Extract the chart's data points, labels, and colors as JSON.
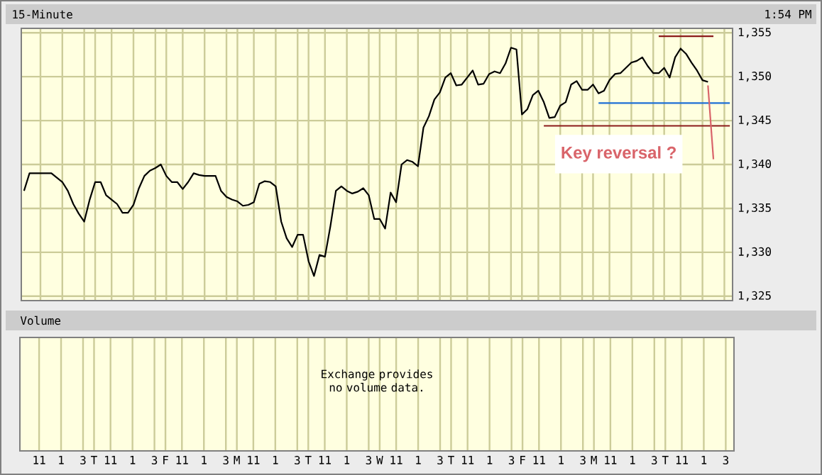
{
  "chart_data": [
    {
      "type": "line",
      "title": "15-Minute",
      "subtitle": "1:54 PM",
      "series": [
        {
          "color": "#000000",
          "values": [
            1337,
            1339,
            1339,
            1339,
            1339,
            1339,
            1338.5,
            1338,
            1337,
            1335.5,
            1334.4,
            1333.5,
            1336,
            1338,
            1338,
            1336.5,
            1336,
            1335.5,
            1334.5,
            1334.5,
            1335.4,
            1337.3,
            1338.7,
            1339.3,
            1339.6,
            1340,
            1338.7,
            1338,
            1338,
            1337.2,
            1338,
            1339,
            1338.8,
            1338.7,
            1338.7,
            1338.7,
            1337,
            1336.3,
            1336,
            1335.8,
            1335.3,
            1335.4,
            1335.7,
            1337.8,
            1338.1,
            1338,
            1337.5,
            1333.5,
            1331.6,
            1330.6,
            1332,
            1332,
            1329,
            1327.3,
            1329.7,
            1329.5,
            1333,
            1337,
            1337.5,
            1337,
            1336.7,
            1336.9,
            1337.3,
            1336.5,
            1333.8,
            1333.8,
            1332.7,
            1336.8,
            1335.7,
            1340,
            1340.5,
            1340.3,
            1339.8,
            1344.2,
            1345.5,
            1347.4,
            1348.2,
            1349.9,
            1350.4,
            1349,
            1349.1,
            1349.9,
            1350.7,
            1349.1,
            1349.2,
            1350.3,
            1350.6,
            1350.4,
            1351.5,
            1353.3,
            1353.1,
            1345.7,
            1346.3,
            1347.9,
            1348.4,
            1347.1,
            1345.3,
            1345.4,
            1346.7,
            1347.1,
            1349.1,
            1349.5,
            1348.5,
            1348.5,
            1349.1,
            1348.1,
            1348.4,
            1349.6,
            1350.3,
            1350.4,
            1351,
            1351.6,
            1351.8,
            1352.2,
            1351.2,
            1350.4,
            1350.4,
            1351,
            1349.9,
            1352.2,
            1353.2,
            1352.6,
            1351.6,
            1350.7,
            1349.6,
            1349.4,
            null,
            null,
            null,
            null
          ]
        },
        {
          "color": "#8b1a1a",
          "values": [
            null,
            null,
            null,
            null,
            null,
            null,
            null,
            null,
            null,
            null,
            null,
            null,
            null,
            null,
            null,
            null,
            null,
            null,
            null,
            null,
            null,
            null,
            null,
            null,
            null,
            null,
            null,
            null,
            null,
            null,
            null,
            null,
            null,
            null,
            null,
            null,
            null,
            null,
            null,
            null,
            null,
            null,
            null,
            null,
            null,
            null,
            null,
            null,
            null,
            null,
            null,
            null,
            null,
            null,
            null,
            null,
            null,
            null,
            null,
            null,
            null,
            null,
            null,
            null,
            null,
            null,
            null,
            null,
            null,
            null,
            null,
            null,
            null,
            null,
            null,
            null,
            null,
            null,
            null,
            null,
            null,
            null,
            null,
            null,
            null,
            null,
            null,
            null,
            null,
            null,
            null,
            null,
            null,
            null,
            null,
            null,
            null,
            null,
            null,
            null,
            null,
            null,
            null,
            null,
            null,
            null,
            null,
            null,
            null,
            null,
            null,
            null,
            null,
            null,
            null,
            null,
            1354.6,
            1354.6,
            1354.6,
            1354.6,
            1354.6,
            1354.6,
            1354.6,
            1354.6,
            1354.6,
            1354.6,
            1354.6,
            null,
            null,
            null
          ]
        },
        {
          "color": "#1f6fd6",
          "values": [
            null,
            null,
            null,
            null,
            null,
            null,
            null,
            null,
            null,
            null,
            null,
            null,
            null,
            null,
            null,
            null,
            null,
            null,
            null,
            null,
            null,
            null,
            null,
            null,
            null,
            null,
            null,
            null,
            null,
            null,
            null,
            null,
            null,
            null,
            null,
            null,
            null,
            null,
            null,
            null,
            null,
            null,
            null,
            null,
            null,
            null,
            null,
            null,
            null,
            null,
            null,
            null,
            null,
            null,
            null,
            null,
            null,
            null,
            null,
            null,
            null,
            null,
            null,
            null,
            null,
            null,
            null,
            null,
            null,
            null,
            null,
            null,
            null,
            null,
            null,
            null,
            null,
            null,
            null,
            null,
            null,
            null,
            null,
            null,
            null,
            null,
            null,
            null,
            null,
            null,
            null,
            null,
            null,
            null,
            null,
            null,
            null,
            null,
            null,
            null,
            null,
            null,
            null,
            null,
            null,
            1347,
            1347,
            1347,
            1347,
            1347,
            1347,
            1347,
            1347,
            1347,
            1347,
            1347,
            1347,
            1347,
            1347,
            1347,
            1347,
            1347,
            1347,
            1347,
            1347,
            1347,
            1347,
            1347,
            1347,
            1347
          ]
        },
        {
          "color": "#8b1a1a",
          "values": [
            null,
            null,
            null,
            null,
            null,
            null,
            null,
            null,
            null,
            null,
            null,
            null,
            null,
            null,
            null,
            null,
            null,
            null,
            null,
            null,
            null,
            null,
            null,
            null,
            null,
            null,
            null,
            null,
            null,
            null,
            null,
            null,
            null,
            null,
            null,
            null,
            null,
            null,
            null,
            null,
            null,
            null,
            null,
            null,
            null,
            null,
            null,
            null,
            null,
            null,
            null,
            null,
            null,
            null,
            null,
            null,
            null,
            null,
            null,
            null,
            null,
            null,
            null,
            null,
            null,
            null,
            null,
            null,
            null,
            null,
            null,
            null,
            null,
            null,
            null,
            null,
            null,
            null,
            null,
            null,
            null,
            null,
            null,
            null,
            null,
            null,
            null,
            null,
            null,
            null,
            null,
            null,
            null,
            null,
            null,
            1344.4,
            1344.4,
            1344.4,
            1344.4,
            1344.4,
            1344.4,
            1344.4,
            1344.4,
            1344.4,
            1344.4,
            1344.4,
            1344.4,
            1344.4,
            1344.4,
            1344.4,
            1344.4,
            1344.4,
            1344.4,
            1344.4,
            1344.4,
            1344.4,
            1344.4,
            1344.4,
            1344.4,
            1344.4,
            1344.4,
            1344.4,
            1344.4,
            1344.4,
            1344.4,
            1344.4,
            1344.4,
            1344.4,
            1344.4,
            1344.4
          ]
        },
        {
          "color": "#d9646a",
          "values": [
            null,
            null,
            null,
            null,
            null,
            null,
            null,
            null,
            null,
            null,
            null,
            null,
            null,
            null,
            null,
            null,
            null,
            null,
            null,
            null,
            null,
            null,
            null,
            null,
            null,
            null,
            null,
            null,
            null,
            null,
            null,
            null,
            null,
            null,
            null,
            null,
            null,
            null,
            null,
            null,
            null,
            null,
            null,
            null,
            null,
            null,
            null,
            null,
            null,
            null,
            null,
            null,
            null,
            null,
            null,
            null,
            null,
            null,
            null,
            null,
            null,
            null,
            null,
            null,
            null,
            null,
            null,
            null,
            null,
            null,
            null,
            null,
            null,
            null,
            null,
            null,
            null,
            null,
            null,
            null,
            null,
            null,
            null,
            null,
            null,
            null,
            null,
            null,
            null,
            null,
            null,
            null,
            null,
            null,
            null,
            null,
            null,
            null,
            null,
            null,
            null,
            null,
            null,
            null,
            null,
            null,
            null,
            null,
            null,
            null,
            null,
            null,
            null,
            null,
            null,
            null,
            null,
            null,
            null,
            null,
            null,
            null,
            null,
            null,
            null,
            1349,
            1340.6,
            null,
            null,
            null
          ]
        }
      ],
      "annotations": [
        "Key reversal ?"
      ],
      "ylim": [
        1324.5,
        1355.5
      ],
      "yticks": [
        {
          "value": 1325,
          "label": "1,325"
        },
        {
          "value": 1330,
          "label": "1,330"
        },
        {
          "value": 1335,
          "label": "1,335"
        },
        {
          "value": 1340,
          "label": "1,340"
        },
        {
          "value": 1345,
          "label": "1,345"
        },
        {
          "value": 1350,
          "label": "1,350"
        },
        {
          "value": 1355,
          "label": "1,355"
        }
      ],
      "grid": true
    },
    {
      "type": "other",
      "title": "Volume",
      "annotations": [
        "Exchange provides no volume data."
      ],
      "categories": [
        null,
        null,
        null,
        "11",
        null,
        null,
        null,
        "1",
        null,
        null,
        null,
        "3",
        null,
        "T",
        null,
        null,
        "11",
        null,
        null,
        null,
        "1",
        null,
        null,
        null,
        "3",
        null,
        "F",
        null,
        null,
        "11",
        null,
        null,
        null,
        "1",
        null,
        null,
        null,
        "3",
        null,
        "M",
        null,
        null,
        "11",
        null,
        null,
        null,
        "1",
        null,
        null,
        null,
        "3",
        null,
        "T",
        null,
        null,
        "11",
        null,
        null,
        null,
        "1",
        null,
        null,
        null,
        "3",
        null,
        "W",
        null,
        null,
        "11",
        null,
        null,
        null,
        "1",
        null,
        null,
        null,
        "3",
        null,
        "T",
        null,
        null,
        "11",
        null,
        null,
        null,
        "1",
        null,
        null,
        null,
        "3",
        null,
        "F",
        null,
        null,
        "11",
        null,
        null,
        null,
        "1",
        null,
        null,
        null,
        "3",
        null,
        "M",
        null,
        null,
        "11",
        null,
        null,
        null,
        "1",
        null,
        null,
        null,
        "3",
        null,
        "T",
        null,
        null,
        "11",
        null,
        null,
        null,
        "1",
        null,
        null,
        null,
        "3",
        null
      ]
    }
  ]
}
